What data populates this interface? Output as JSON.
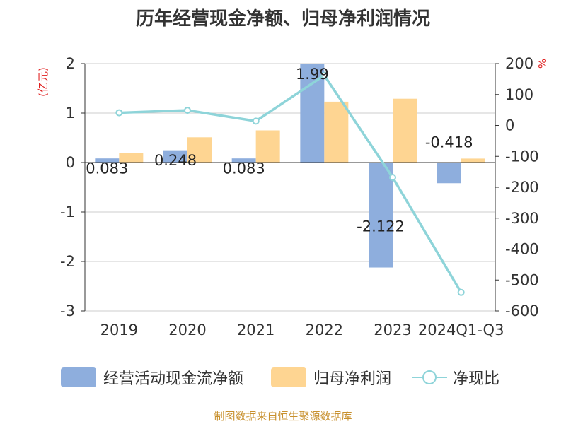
{
  "title": "历年经营现金净额、归母净利润情况",
  "source": "制图数据来自恒生聚源数据库",
  "legend": {
    "ocf": "经营活动现金流净额",
    "profit": "归母净利润",
    "ratio": "净现比"
  },
  "colors": {
    "ocf": "#8eaedd",
    "profit": "#fed592",
    "ratio": "#8ed4d9",
    "unit_text": "#e02020",
    "source_text": "#c8912f"
  },
  "chart_data": {
    "type": "bar",
    "categories": [
      "2019",
      "2020",
      "2021",
      "2022",
      "2023",
      "2024Q1-Q3"
    ],
    "series": [
      {
        "name": "经营活动现金流净额",
        "type": "bar",
        "axis": "left",
        "values": [
          0.083,
          0.248,
          0.083,
          1.99,
          -2.122,
          -0.418
        ],
        "labels": [
          "0.083",
          "0.248",
          "0.083",
          "1.99",
          "-2.122",
          "-0.418"
        ]
      },
      {
        "name": "归母净利润",
        "type": "bar",
        "axis": "left",
        "values": [
          0.2,
          0.51,
          0.65,
          1.23,
          1.29,
          0.08
        ]
      },
      {
        "name": "净现比",
        "type": "line",
        "axis": "right",
        "values": [
          41,
          49,
          14,
          162,
          -168,
          -540
        ]
      }
    ],
    "y_left": {
      "unit": "(亿元)",
      "ylim": [
        -3,
        2
      ],
      "ticks": [
        "2",
        "1",
        "0",
        "-1",
        "-2",
        "-3"
      ]
    },
    "y_right": {
      "unit": "%",
      "ylim": [
        -600,
        200
      ],
      "ticks": [
        "200",
        "100",
        "0",
        "-100",
        "-200",
        "-300",
        "-400",
        "-500",
        "-600"
      ]
    },
    "grid": true,
    "legend_position": "bottom"
  }
}
